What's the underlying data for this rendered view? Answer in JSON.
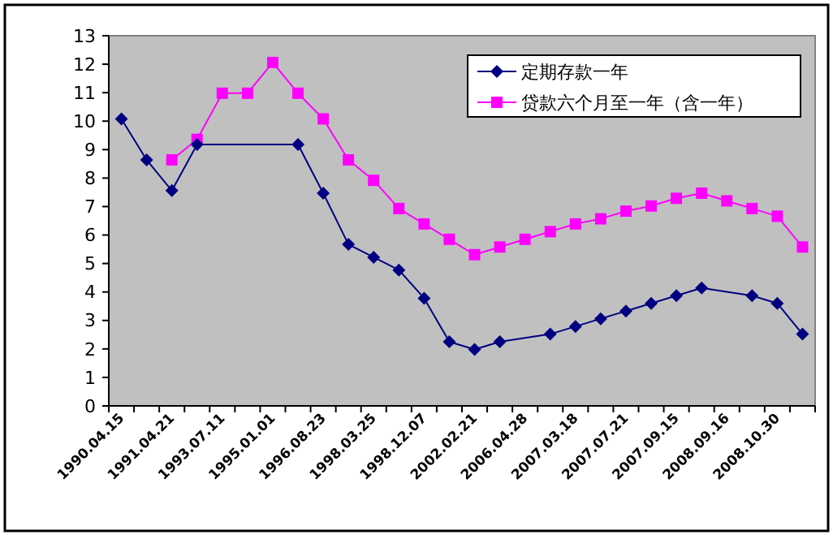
{
  "chart_data": {
    "type": "line",
    "categories": [
      "1990.04.15",
      null,
      "1991.04.21",
      null,
      "1993.07.11",
      null,
      "1995.01.01",
      null,
      "1996.08.23",
      null,
      "1998.03.25",
      null,
      "1998.12.07",
      null,
      "2002.02.21",
      null,
      "2006.04.28",
      null,
      "2007.03.18",
      null,
      "2007.07.21",
      null,
      "2007.09.15",
      null,
      "2008.09.16",
      null,
      "2008.10.30",
      null
    ],
    "series": [
      {
        "name": "定期存款一年",
        "color": "#000080",
        "marker": "diamond",
        "values": [
          10.08,
          8.64,
          7.56,
          9.18,
          null,
          null,
          null,
          9.18,
          7.47,
          5.67,
          5.22,
          4.77,
          3.78,
          2.25,
          1.98,
          2.25,
          null,
          2.52,
          2.79,
          3.06,
          3.33,
          3.6,
          3.87,
          4.14,
          null,
          3.87,
          3.6,
          2.52
        ]
      },
      {
        "name": "贷款六个月至一年（含一年）",
        "color": "#ff00ff",
        "marker": "square",
        "values": [
          null,
          null,
          8.64,
          9.36,
          10.98,
          10.98,
          12.06,
          10.98,
          10.08,
          8.64,
          7.92,
          6.93,
          6.39,
          5.85,
          5.31,
          5.58,
          5.85,
          6.12,
          6.39,
          6.57,
          6.84,
          7.02,
          7.29,
          7.47,
          7.2,
          6.93,
          6.66,
          5.58
        ]
      }
    ],
    "ylim": [
      0,
      13
    ],
    "yticks": [
      0,
      1,
      2,
      3,
      4,
      5,
      6,
      7,
      8,
      9,
      10,
      11,
      12,
      13
    ],
    "legend": "top right",
    "grid": false
  }
}
